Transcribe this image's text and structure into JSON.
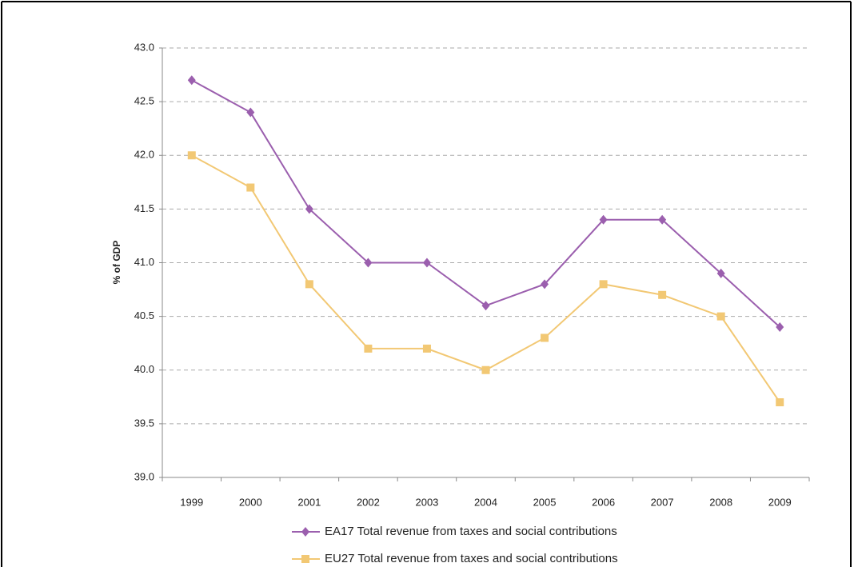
{
  "chart_data": {
    "type": "line",
    "y_label": "% of GDP",
    "categories": [
      "1999",
      "2000",
      "2001",
      "2002",
      "2003",
      "2004",
      "2005",
      "2006",
      "2007",
      "2008",
      "2009"
    ],
    "series": [
      {
        "name": "EA17 Total revenue from taxes and social contributions",
        "color": "#9b5fae",
        "marker": "diamond",
        "values": [
          42.7,
          42.4,
          41.5,
          41.0,
          41.0,
          40.6,
          40.8,
          41.4,
          41.4,
          40.9,
          40.4
        ]
      },
      {
        "name": "EU27 Total revenue from taxes and social contributions",
        "color": "#f2c874",
        "marker": "square",
        "values": [
          42.0,
          41.7,
          40.8,
          40.2,
          40.2,
          40.0,
          40.3,
          40.8,
          40.7,
          40.5,
          39.7
        ]
      }
    ],
    "ylim": [
      39,
      43
    ],
    "yticks": [
      {
        "value": 39,
        "label": "39.0"
      },
      {
        "value": 39.5,
        "label": "39.5"
      },
      {
        "value": 40,
        "label": "40.0"
      },
      {
        "value": 40.5,
        "label": "40.5"
      },
      {
        "value": 41,
        "label": "41.0"
      },
      {
        "value": 41.5,
        "label": "41.5"
      },
      {
        "value": 42,
        "label": "42.0"
      },
      {
        "value": 42.5,
        "label": "42.5"
      },
      {
        "value": 43,
        "label": "43.0"
      }
    ],
    "grid": true,
    "legend": "bottom"
  }
}
